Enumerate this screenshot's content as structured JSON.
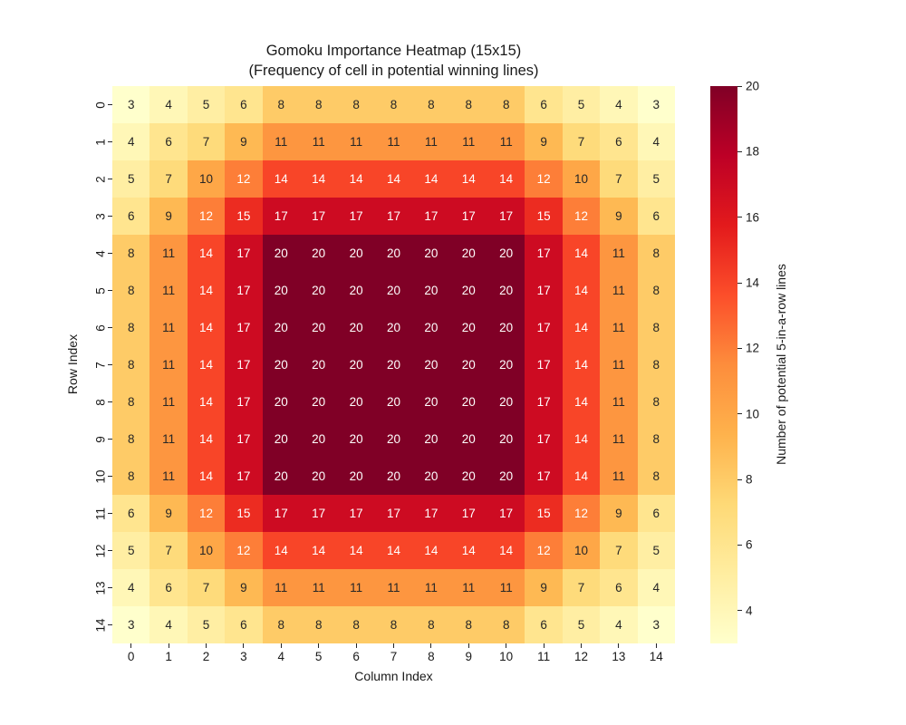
{
  "figure": {
    "background": "#ffffff",
    "text_color": "#1a1a1a"
  },
  "chart_data": {
    "type": "heatmap",
    "title": "Gomoku Importance Heatmap (15x15)",
    "subtitle": "(Frequency of cell in potential winning lines)",
    "xlabel": "Column Index",
    "ylabel": "Row Index",
    "x_tick_labels": [
      "0",
      "1",
      "2",
      "3",
      "4",
      "5",
      "6",
      "7",
      "8",
      "9",
      "10",
      "11",
      "12",
      "13",
      "14"
    ],
    "y_tick_labels": [
      "0",
      "1",
      "2",
      "3",
      "4",
      "5",
      "6",
      "7",
      "8",
      "9",
      "10",
      "11",
      "12",
      "13",
      "14"
    ],
    "values": [
      [
        3,
        4,
        5,
        6,
        8,
        8,
        8,
        8,
        8,
        8,
        8,
        6,
        5,
        4,
        3
      ],
      [
        4,
        6,
        7,
        9,
        11,
        11,
        11,
        11,
        11,
        11,
        11,
        9,
        7,
        6,
        4
      ],
      [
        5,
        7,
        10,
        12,
        14,
        14,
        14,
        14,
        14,
        14,
        14,
        12,
        10,
        7,
        5
      ],
      [
        6,
        9,
        12,
        15,
        17,
        17,
        17,
        17,
        17,
        17,
        17,
        15,
        12,
        9,
        6
      ],
      [
        8,
        11,
        14,
        17,
        20,
        20,
        20,
        20,
        20,
        20,
        20,
        17,
        14,
        11,
        8
      ],
      [
        8,
        11,
        14,
        17,
        20,
        20,
        20,
        20,
        20,
        20,
        20,
        17,
        14,
        11,
        8
      ],
      [
        8,
        11,
        14,
        17,
        20,
        20,
        20,
        20,
        20,
        20,
        20,
        17,
        14,
        11,
        8
      ],
      [
        8,
        11,
        14,
        17,
        20,
        20,
        20,
        20,
        20,
        20,
        20,
        17,
        14,
        11,
        8
      ],
      [
        8,
        11,
        14,
        17,
        20,
        20,
        20,
        20,
        20,
        20,
        20,
        17,
        14,
        11,
        8
      ],
      [
        8,
        11,
        14,
        17,
        20,
        20,
        20,
        20,
        20,
        20,
        20,
        17,
        14,
        11,
        8
      ],
      [
        8,
        11,
        14,
        17,
        20,
        20,
        20,
        20,
        20,
        20,
        20,
        17,
        14,
        11,
        8
      ],
      [
        6,
        9,
        12,
        15,
        17,
        17,
        17,
        17,
        17,
        17,
        17,
        15,
        12,
        9,
        6
      ],
      [
        5,
        7,
        10,
        12,
        14,
        14,
        14,
        14,
        14,
        14,
        14,
        12,
        10,
        7,
        5
      ],
      [
        4,
        6,
        7,
        9,
        11,
        11,
        11,
        11,
        11,
        11,
        11,
        9,
        7,
        6,
        4
      ],
      [
        3,
        4,
        5,
        6,
        8,
        8,
        8,
        8,
        8,
        8,
        8,
        6,
        5,
        4,
        3
      ]
    ],
    "vmin": 3,
    "vmax": 20,
    "colormap": "YlOrRd",
    "colormap_stops": [
      "#ffffcc",
      "#ffeda0",
      "#fed976",
      "#feb24c",
      "#fd8d3c",
      "#fc4e2a",
      "#e31a1c",
      "#bd0026",
      "#800026"
    ],
    "annot_color_dark": "#262626",
    "annot_color_light": "#ffffff",
    "colorbar_label": "Number of potential 5-in-a-row lines",
    "colorbar_ticks": [
      4,
      6,
      8,
      10,
      12,
      14,
      16,
      18,
      20
    ],
    "legend_position": "right",
    "grid": false
  }
}
